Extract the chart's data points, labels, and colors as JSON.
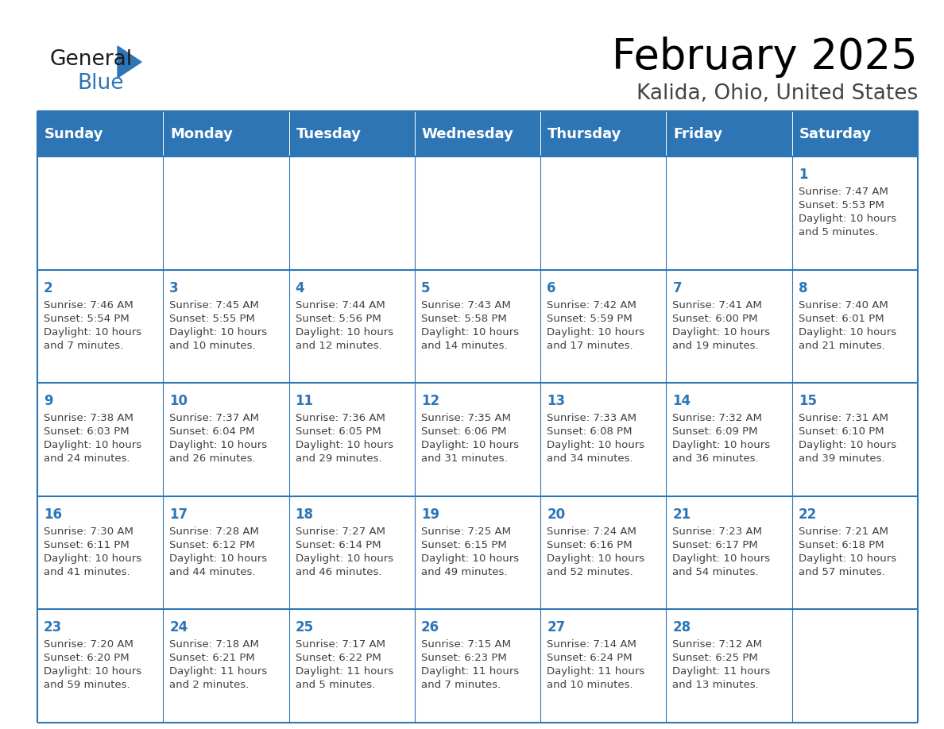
{
  "title": "February 2025",
  "subtitle": "Kalida, Ohio, United States",
  "header_bg": "#2E75B6",
  "header_text": "#FFFFFF",
  "cell_bg_light": "#FFFFFF",
  "border_color": "#2E75B6",
  "day_number_color": "#2E75B6",
  "info_text_color": "#404040",
  "days_of_week": [
    "Sunday",
    "Monday",
    "Tuesday",
    "Wednesday",
    "Thursday",
    "Friday",
    "Saturday"
  ],
  "calendar_data": [
    [
      null,
      null,
      null,
      null,
      null,
      null,
      {
        "day": 1,
        "sunrise": "7:47 AM",
        "sunset": "5:53 PM",
        "daylight_l1": "10 hours",
        "daylight_l2": "and 5 minutes."
      }
    ],
    [
      {
        "day": 2,
        "sunrise": "7:46 AM",
        "sunset": "5:54 PM",
        "daylight_l1": "10 hours",
        "daylight_l2": "and 7 minutes."
      },
      {
        "day": 3,
        "sunrise": "7:45 AM",
        "sunset": "5:55 PM",
        "daylight_l1": "10 hours",
        "daylight_l2": "and 10 minutes."
      },
      {
        "day": 4,
        "sunrise": "7:44 AM",
        "sunset": "5:56 PM",
        "daylight_l1": "10 hours",
        "daylight_l2": "and 12 minutes."
      },
      {
        "day": 5,
        "sunrise": "7:43 AM",
        "sunset": "5:58 PM",
        "daylight_l1": "10 hours",
        "daylight_l2": "and 14 minutes."
      },
      {
        "day": 6,
        "sunrise": "7:42 AM",
        "sunset": "5:59 PM",
        "daylight_l1": "10 hours",
        "daylight_l2": "and 17 minutes."
      },
      {
        "day": 7,
        "sunrise": "7:41 AM",
        "sunset": "6:00 PM",
        "daylight_l1": "10 hours",
        "daylight_l2": "and 19 minutes."
      },
      {
        "day": 8,
        "sunrise": "7:40 AM",
        "sunset": "6:01 PM",
        "daylight_l1": "10 hours",
        "daylight_l2": "and 21 minutes."
      }
    ],
    [
      {
        "day": 9,
        "sunrise": "7:38 AM",
        "sunset": "6:03 PM",
        "daylight_l1": "10 hours",
        "daylight_l2": "and 24 minutes."
      },
      {
        "day": 10,
        "sunrise": "7:37 AM",
        "sunset": "6:04 PM",
        "daylight_l1": "10 hours",
        "daylight_l2": "and 26 minutes."
      },
      {
        "day": 11,
        "sunrise": "7:36 AM",
        "sunset": "6:05 PM",
        "daylight_l1": "10 hours",
        "daylight_l2": "and 29 minutes."
      },
      {
        "day": 12,
        "sunrise": "7:35 AM",
        "sunset": "6:06 PM",
        "daylight_l1": "10 hours",
        "daylight_l2": "and 31 minutes."
      },
      {
        "day": 13,
        "sunrise": "7:33 AM",
        "sunset": "6:08 PM",
        "daylight_l1": "10 hours",
        "daylight_l2": "and 34 minutes."
      },
      {
        "day": 14,
        "sunrise": "7:32 AM",
        "sunset": "6:09 PM",
        "daylight_l1": "10 hours",
        "daylight_l2": "and 36 minutes."
      },
      {
        "day": 15,
        "sunrise": "7:31 AM",
        "sunset": "6:10 PM",
        "daylight_l1": "10 hours",
        "daylight_l2": "and 39 minutes."
      }
    ],
    [
      {
        "day": 16,
        "sunrise": "7:30 AM",
        "sunset": "6:11 PM",
        "daylight_l1": "10 hours",
        "daylight_l2": "and 41 minutes."
      },
      {
        "day": 17,
        "sunrise": "7:28 AM",
        "sunset": "6:12 PM",
        "daylight_l1": "10 hours",
        "daylight_l2": "and 44 minutes."
      },
      {
        "day": 18,
        "sunrise": "7:27 AM",
        "sunset": "6:14 PM",
        "daylight_l1": "10 hours",
        "daylight_l2": "and 46 minutes."
      },
      {
        "day": 19,
        "sunrise": "7:25 AM",
        "sunset": "6:15 PM",
        "daylight_l1": "10 hours",
        "daylight_l2": "and 49 minutes."
      },
      {
        "day": 20,
        "sunrise": "7:24 AM",
        "sunset": "6:16 PM",
        "daylight_l1": "10 hours",
        "daylight_l2": "and 52 minutes."
      },
      {
        "day": 21,
        "sunrise": "7:23 AM",
        "sunset": "6:17 PM",
        "daylight_l1": "10 hours",
        "daylight_l2": "and 54 minutes."
      },
      {
        "day": 22,
        "sunrise": "7:21 AM",
        "sunset": "6:18 PM",
        "daylight_l1": "10 hours",
        "daylight_l2": "and 57 minutes."
      }
    ],
    [
      {
        "day": 23,
        "sunrise": "7:20 AM",
        "sunset": "6:20 PM",
        "daylight_l1": "10 hours",
        "daylight_l2": "and 59 minutes."
      },
      {
        "day": 24,
        "sunrise": "7:18 AM",
        "sunset": "6:21 PM",
        "daylight_l1": "11 hours",
        "daylight_l2": "and 2 minutes."
      },
      {
        "day": 25,
        "sunrise": "7:17 AM",
        "sunset": "6:22 PM",
        "daylight_l1": "11 hours",
        "daylight_l2": "and 5 minutes."
      },
      {
        "day": 26,
        "sunrise": "7:15 AM",
        "sunset": "6:23 PM",
        "daylight_l1": "11 hours",
        "daylight_l2": "and 7 minutes."
      },
      {
        "day": 27,
        "sunrise": "7:14 AM",
        "sunset": "6:24 PM",
        "daylight_l1": "11 hours",
        "daylight_l2": "and 10 minutes."
      },
      {
        "day": 28,
        "sunrise": "7:12 AM",
        "sunset": "6:25 PM",
        "daylight_l1": "11 hours",
        "daylight_l2": "and 13 minutes."
      },
      null
    ]
  ]
}
